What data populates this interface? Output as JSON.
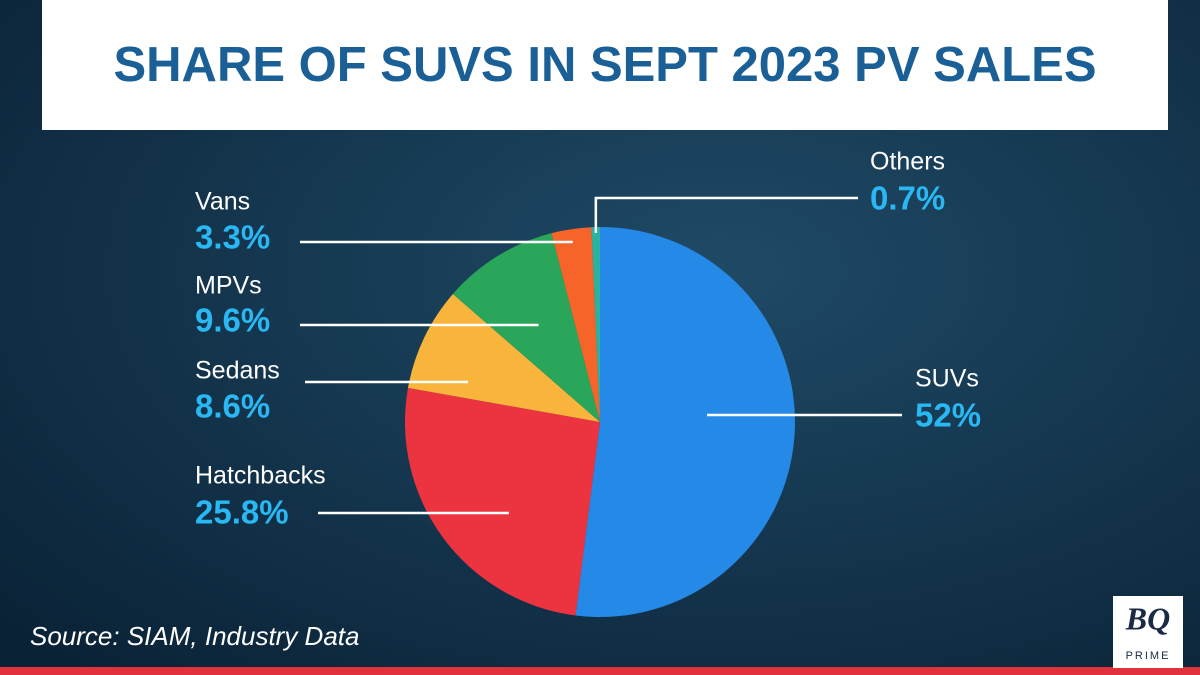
{
  "chart_data": {
    "type": "pie",
    "title": "SHARE OF SUVS IN SEPT 2023 PV SALES",
    "categories": [
      "SUVs",
      "Hatchbacks",
      "Sedans",
      "MPVs",
      "Vans",
      "Others"
    ],
    "values": [
      52,
      25.8,
      8.6,
      9.6,
      3.3,
      0.7
    ],
    "value_labels": [
      "52%",
      "25.8%",
      "8.6%",
      "9.6%",
      "3.3%",
      "0.7%"
    ],
    "colors": [
      "#2589e8",
      "#ec3440",
      "#f9b53b",
      "#2aa65a",
      "#f7642a",
      "#2bb3a0"
    ],
    "source": "Source: SIAM, Industry Data"
  },
  "logo": {
    "mark": "BQ",
    "name": "PRIME"
  }
}
